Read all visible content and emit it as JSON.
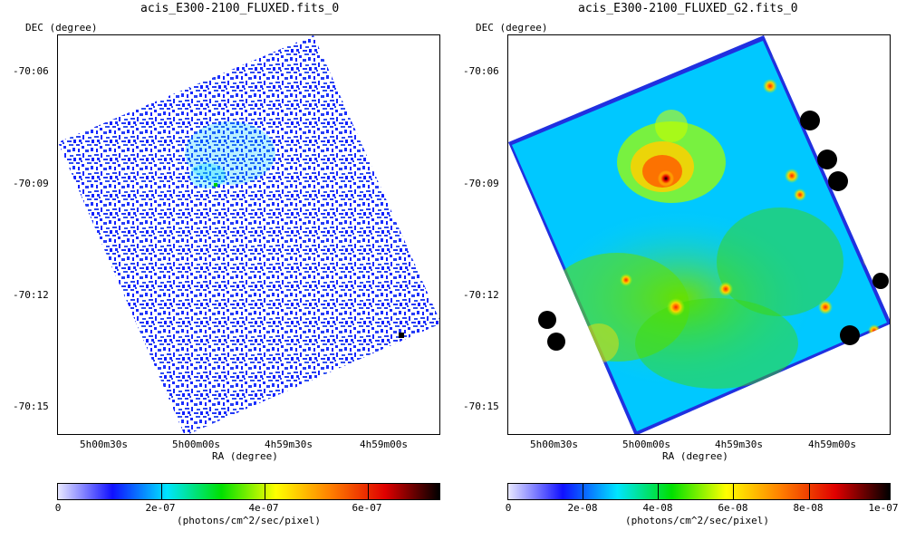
{
  "left_panel": {
    "title": "acis_E300-2100_FLUXED.fits_0",
    "y_axis_label": "DEC (degree)",
    "x_axis_label": "RA (degree)",
    "dec_ticks": [
      "-70:06",
      "-70:09",
      "-70:12",
      "-70:15"
    ],
    "ra_ticks": [
      "5h00m30s",
      "5h00m00s",
      "4h59m30s",
      "4h59m00s"
    ],
    "colorbar": {
      "tick_labels": [
        "0",
        "2e-07",
        "4e-07",
        "6e-07"
      ],
      "unit_label": "(photons/cm^2/sec/pixel)"
    }
  },
  "right_panel": {
    "title": "acis_E300-2100_FLUXED_G2.fits_0",
    "y_axis_label": "DEC (degree)",
    "x_axis_label": "RA (degree)",
    "dec_ticks": [
      "-70:06",
      "-70:09",
      "-70:12",
      "-70:15"
    ],
    "ra_ticks": [
      "5h00m30s",
      "5h00m00s",
      "4h59m30s",
      "4h59m00s"
    ],
    "colorbar": {
      "tick_labels": [
        "0",
        "2e-08",
        "4e-08",
        "6e-08",
        "8e-08",
        "1e-07"
      ],
      "unit_label": "(photons/cm^2/sec/pixel)"
    }
  },
  "colormap": [
    "#e8e8ff",
    "#1010ff",
    "#00e5ff",
    "#00e000",
    "#ffff00",
    "#ff7f00",
    "#e00000",
    "#000000"
  ]
}
